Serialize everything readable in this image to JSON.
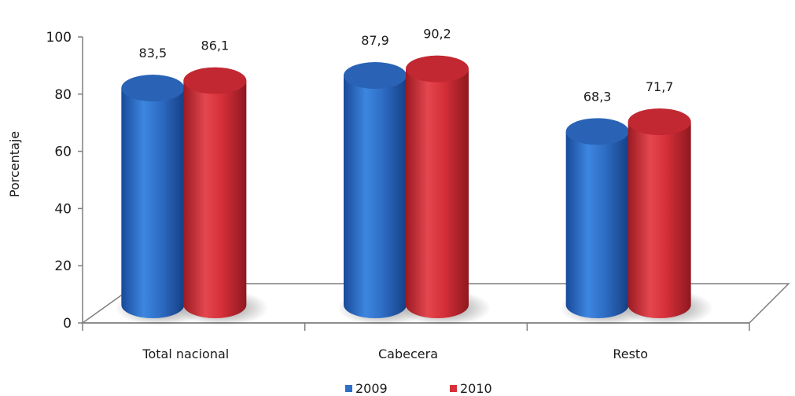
{
  "chart_data": {
    "type": "bar",
    "subtype": "3d-cylinder",
    "ylabel": "Porcentaje",
    "ylim": [
      0,
      100
    ],
    "yticks": [
      "0",
      "20",
      "40",
      "60",
      "80",
      "100"
    ],
    "categories": [
      "Total nacional",
      "Cabecera",
      "Resto"
    ],
    "series": [
      {
        "name": "2009",
        "values": [
          83.5,
          87.9,
          68.3
        ],
        "labels": [
          "83,5",
          "87,9",
          "68,3"
        ],
        "color": "#2f6fc6"
      },
      {
        "name": "2010",
        "values": [
          86.1,
          90.2,
          71.7
        ],
        "labels": [
          "86,1",
          "90,2",
          "71,7"
        ],
        "color": "#d6303a"
      }
    ],
    "legend_position": "bottom"
  }
}
